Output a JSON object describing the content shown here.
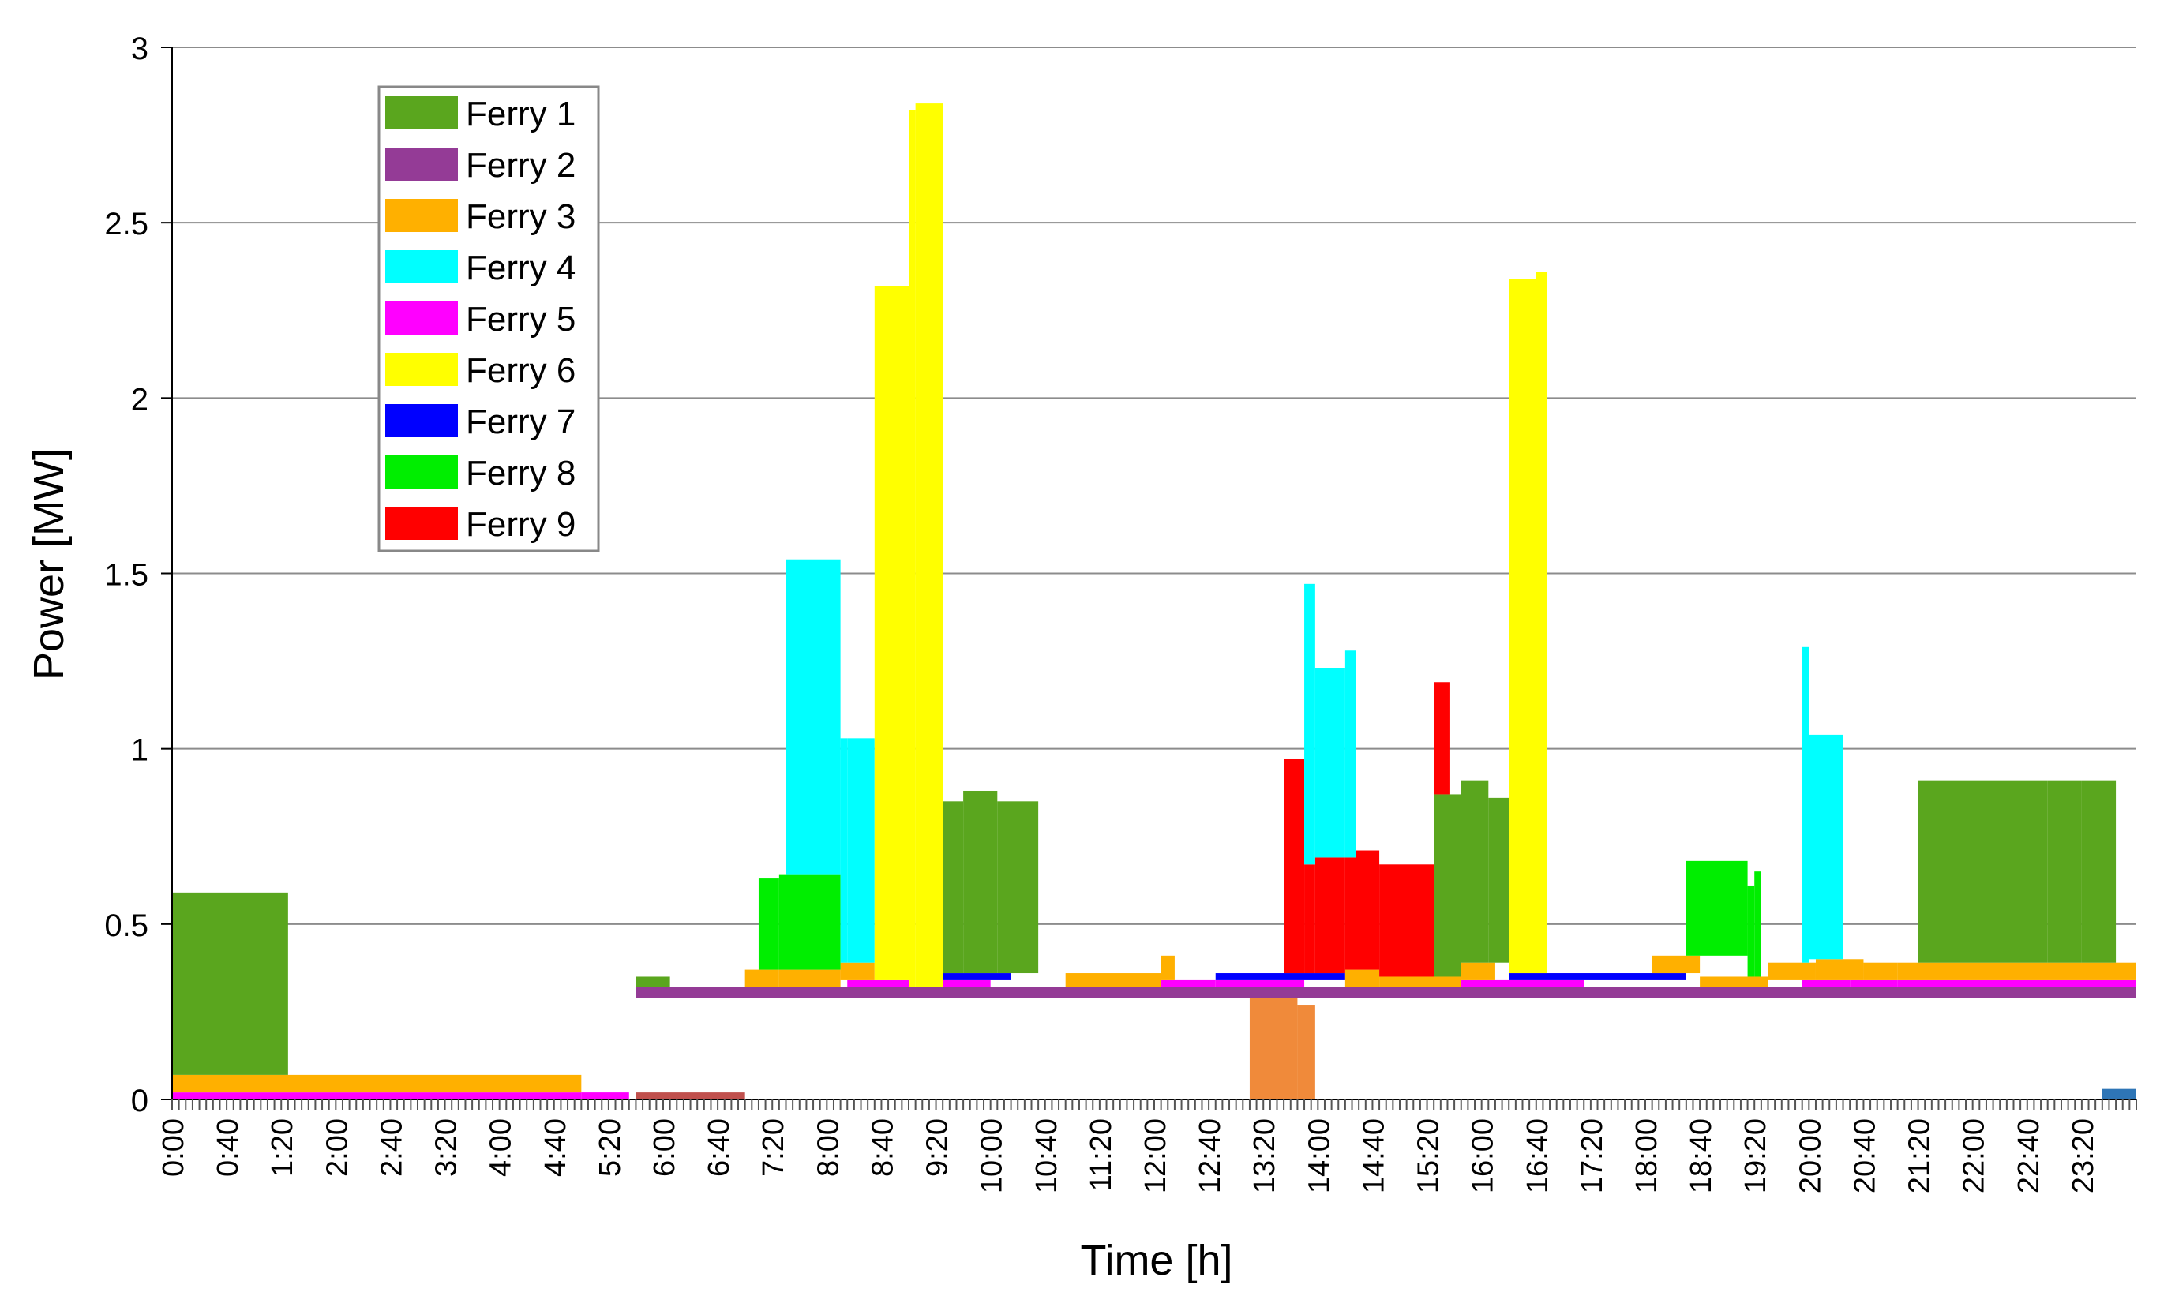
{
  "chart_data": {
    "type": "bar",
    "stacked": true,
    "xlabel": "Time [h]",
    "ylabel": "Power [MW]",
    "ylim": [
      0,
      3
    ],
    "yticks": [
      0,
      0.5,
      1,
      1.5,
      2,
      2.5,
      3
    ],
    "ytick_labels": [
      "0",
      "0.5",
      "1",
      "1.5",
      "2",
      "2.5",
      "3"
    ],
    "xlim": [
      0,
      1440
    ],
    "x_unit": "minutes since 0:00",
    "xtick_labels": [
      "0:00",
      "0:40",
      "1:20",
      "2:00",
      "2:40",
      "3:20",
      "4:00",
      "4:40",
      "5:20",
      "6:00",
      "6:40",
      "7:20",
      "8:00",
      "8:40",
      "9:20",
      "10:00",
      "10:40",
      "11:20",
      "12:00",
      "12:40",
      "13:20",
      "14:00",
      "14:40",
      "15:20",
      "16:00",
      "16:40",
      "17:20",
      "18:00",
      "18:40",
      "19:20",
      "20:00",
      "20:40",
      "21:20",
      "22:00",
      "22:40",
      "23:20"
    ],
    "grid": true,
    "legend_position": "top-left",
    "series": [
      {
        "name": "Ferry 1",
        "color": "#5aa61e",
        "segments": [
          {
            "start": 0,
            "end": 85,
            "value": 0.52
          },
          {
            "start": 340,
            "end": 365,
            "value": 0.03
          },
          {
            "start": 565,
            "end": 580,
            "value": 0.49
          },
          {
            "start": 580,
            "end": 605,
            "value": 0.52
          },
          {
            "start": 605,
            "end": 635,
            "value": 0.49
          },
          {
            "start": 925,
            "end": 945,
            "value": 0.52
          },
          {
            "start": 945,
            "end": 965,
            "value": 0.52
          },
          {
            "start": 965,
            "end": 980,
            "value": 0.47
          },
          {
            "start": 1280,
            "end": 1375,
            "value": 0.52
          },
          {
            "start": 1375,
            "end": 1400,
            "value": 0.52
          },
          {
            "start": 1400,
            "end": 1425,
            "value": 0.52
          }
        ]
      },
      {
        "name": "Ferry 2",
        "color": "#943b96",
        "segments": [
          {
            "start": 340,
            "end": 1440,
            "value": 0.03
          }
        ]
      },
      {
        "name": "Ferry 3",
        "color": "#ffb000",
        "segments": [
          {
            "start": 0,
            "end": 300,
            "value": 0.05
          },
          {
            "start": 420,
            "end": 445,
            "value": 0.05
          },
          {
            "start": 445,
            "end": 490,
            "value": 0.05
          },
          {
            "start": 490,
            "end": 515,
            "value": 0.05
          },
          {
            "start": 655,
            "end": 725,
            "value": 0.04
          },
          {
            "start": 725,
            "end": 735,
            "value": 0.07
          },
          {
            "start": 860,
            "end": 885,
            "value": 0.05
          },
          {
            "start": 885,
            "end": 925,
            "value": 0.03
          },
          {
            "start": 925,
            "end": 945,
            "value": 0.03
          },
          {
            "start": 945,
            "end": 970,
            "value": 0.05
          },
          {
            "start": 1085,
            "end": 1120,
            "value": 0.05
          },
          {
            "start": 1120,
            "end": 1170,
            "value": 0.03
          },
          {
            "start": 1170,
            "end": 1205,
            "value": 0.05
          },
          {
            "start": 1205,
            "end": 1240,
            "value": 0.06
          },
          {
            "start": 1240,
            "end": 1265,
            "value": 0.05
          },
          {
            "start": 1265,
            "end": 1415,
            "value": 0.05
          },
          {
            "start": 1415,
            "end": 1440,
            "value": 0.05
          }
        ]
      },
      {
        "name": "Ferry 4",
        "color": "#00ffff",
        "segments": [
          {
            "start": 450,
            "end": 490,
            "value": 0.9
          },
          {
            "start": 490,
            "end": 495,
            "value": 0.64
          },
          {
            "start": 495,
            "end": 515,
            "value": 0.64
          },
          {
            "start": 830,
            "end": 838,
            "value": 0.8
          },
          {
            "start": 838,
            "end": 860,
            "value": 0.54
          },
          {
            "start": 860,
            "end": 868,
            "value": 0.59
          },
          {
            "start": 1195,
            "end": 1200,
            "value": 0.9
          },
          {
            "start": 1200,
            "end": 1225,
            "value": 0.64
          }
        ]
      },
      {
        "name": "Ferry 5",
        "color": "#ff00ff",
        "segments": [
          {
            "start": 0,
            "end": 300,
            "value": 0.02
          },
          {
            "start": 300,
            "end": 335,
            "value": 0.02
          },
          {
            "start": 495,
            "end": 540,
            "value": 0.02
          },
          {
            "start": 565,
            "end": 600,
            "value": 0.02
          },
          {
            "start": 725,
            "end": 765,
            "value": 0.02
          },
          {
            "start": 765,
            "end": 830,
            "value": 0.02
          },
          {
            "start": 945,
            "end": 1000,
            "value": 0.02
          },
          {
            "start": 1000,
            "end": 1035,
            "value": 0.02
          },
          {
            "start": 1195,
            "end": 1230,
            "value": 0.02
          },
          {
            "start": 1230,
            "end": 1265,
            "value": 0.02
          },
          {
            "start": 1265,
            "end": 1415,
            "value": 0.02
          },
          {
            "start": 1415,
            "end": 1440,
            "value": 0.02
          }
        ]
      },
      {
        "name": "Ferry 6",
        "color": "#ffff00",
        "segments": [
          {
            "start": 515,
            "end": 540,
            "value": 1.98
          },
          {
            "start": 540,
            "end": 545,
            "value": 2.5
          },
          {
            "start": 545,
            "end": 565,
            "value": 2.52
          },
          {
            "start": 980,
            "end": 1000,
            "value": 1.98
          },
          {
            "start": 1000,
            "end": 1008,
            "value": 2.0
          }
        ]
      },
      {
        "name": "Ferry 7",
        "color": "#0000ff",
        "segments": [
          {
            "start": 565,
            "end": 615,
            "value": 0.02
          },
          {
            "start": 765,
            "end": 860,
            "value": 0.02
          },
          {
            "start": 980,
            "end": 1110,
            "value": 0.02
          }
        ]
      },
      {
        "name": "Ferry 8",
        "color": "#00ee00",
        "segments": [
          {
            "start": 430,
            "end": 445,
            "value": 0.26
          },
          {
            "start": 445,
            "end": 490,
            "value": 0.27
          },
          {
            "start": 1110,
            "end": 1155,
            "value": 0.27
          },
          {
            "start": 1155,
            "end": 1160,
            "value": 0.26
          },
          {
            "start": 1160,
            "end": 1165,
            "value": 0.3
          }
        ]
      },
      {
        "name": "Ferry 9",
        "color": "#ff0000",
        "segments": [
          {
            "start": 815,
            "end": 830,
            "value": 0.61
          },
          {
            "start": 830,
            "end": 838,
            "value": 0.31
          },
          {
            "start": 838,
            "end": 846,
            "value": 0.33
          },
          {
            "start": 846,
            "end": 860,
            "value": 0.33
          },
          {
            "start": 860,
            "end": 868,
            "value": 0.32
          },
          {
            "start": 868,
            "end": 885,
            "value": 0.34
          },
          {
            "start": 885,
            "end": 925,
            "value": 0.32
          },
          {
            "start": 925,
            "end": 937,
            "value": 0.32
          }
        ]
      }
    ],
    "extra_segments": [
      {
        "color": "#f08a3a",
        "start": 790,
        "end": 825,
        "value": 0.29
      },
      {
        "color": "#f08a3a",
        "start": 825,
        "end": 838,
        "value": 0.27
      },
      {
        "color": "#2e75b6",
        "start": 1415,
        "end": 1440,
        "value": 0.03
      },
      {
        "color": "#c0504d",
        "start": 340,
        "end": 420,
        "value": 0.02
      }
    ]
  }
}
